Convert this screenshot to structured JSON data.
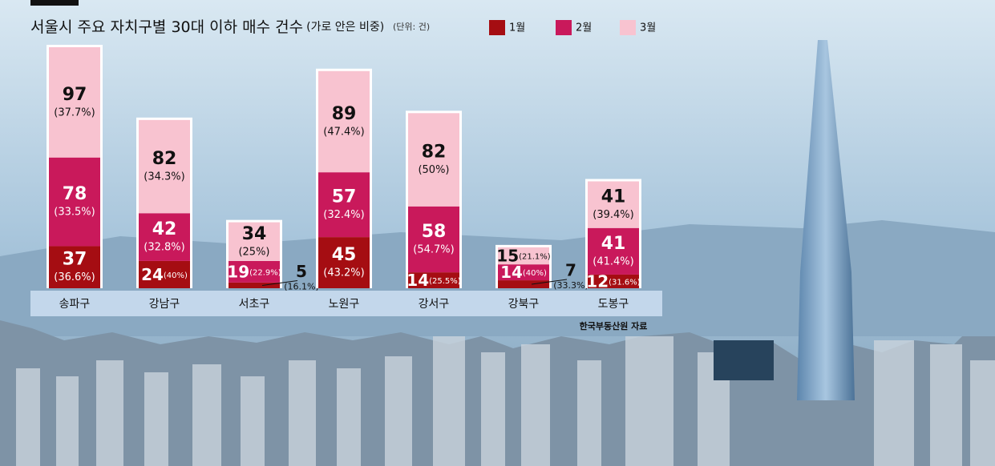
{
  "chart_data": {
    "type": "stacked-bar",
    "title": "서울시 주요 자치구별 30대 이하 매수 건수",
    "subtitle": "(가로 안은 비중)",
    "unit": "(단위: 건)",
    "source": "한국부동산원 자료",
    "categories": [
      "송파구",
      "강남구",
      "서초구",
      "노원구",
      "강서구",
      "강북구",
      "도봉구"
    ],
    "series": [
      {
        "name": "1월",
        "color": "#a50d12",
        "values": [
          37,
          24,
          5,
          45,
          14,
          7,
          12
        ],
        "shares": [
          36.6,
          40,
          16.1,
          43.2,
          25.5,
          33.3,
          31.6
        ],
        "share_labels": [
          "(36.6%)",
          "(40%)",
          "(16.1%)",
          "(43.2%)",
          "(25.5%)",
          "(33.3%)",
          "(31.6%)"
        ]
      },
      {
        "name": "2월",
        "color": "#c9195b",
        "values": [
          78,
          42,
          19,
          57,
          58,
          14,
          41
        ],
        "shares": [
          33.5,
          32.8,
          22.9,
          32.4,
          54.7,
          40,
          41.4
        ],
        "share_labels": [
          "(33.5%)",
          "(32.8%)",
          "(22.9%)",
          "(32.4%)",
          "(54.7%)",
          "(40%)",
          "(41.4%)"
        ]
      },
      {
        "name": "3월",
        "color": "#f8c3d0",
        "values": [
          97,
          82,
          34,
          89,
          82,
          15,
          41
        ],
        "shares": [
          37.7,
          34.3,
          25,
          47.4,
          50,
          21.1,
          39.4
        ],
        "share_labels": [
          "(37.7%)",
          "(34.3%)",
          "(25%)",
          "(47.4%)",
          "(50%)",
          "(21.1%)",
          "(39.4%)"
        ]
      }
    ]
  }
}
